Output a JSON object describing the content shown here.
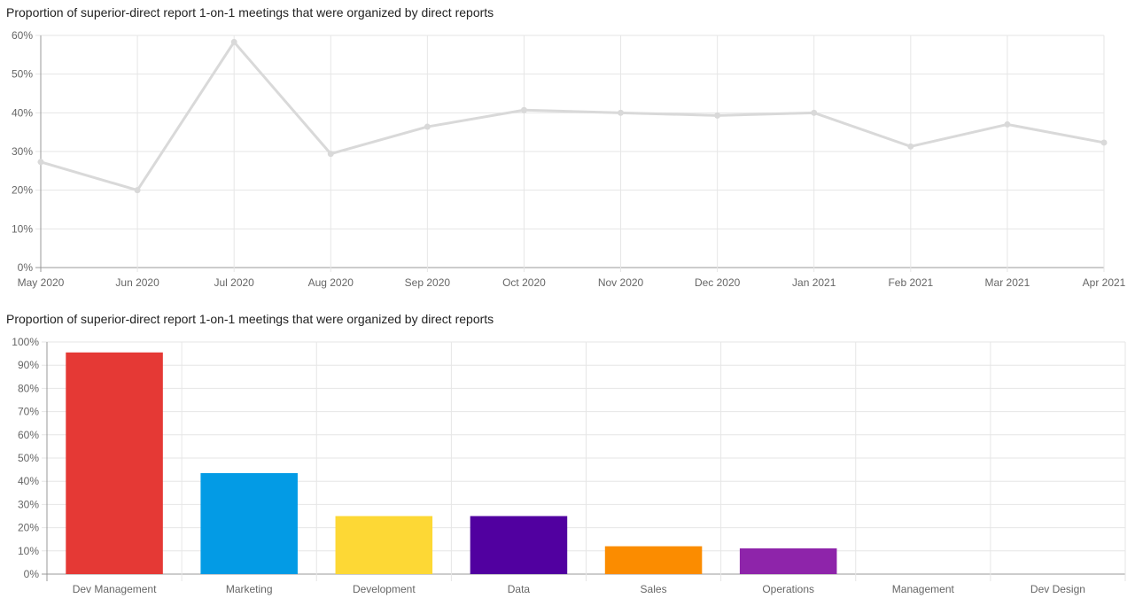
{
  "chart_data": [
    {
      "type": "line",
      "title": "Proportion of superior-direct report 1-on-1 meetings that were organized by direct reports",
      "x": [
        "May 2020",
        "Jun 2020",
        "Jul 2020",
        "Aug 2020",
        "Sep 2020",
        "Oct 2020",
        "Nov 2020",
        "Dec 2020",
        "Jan 2021",
        "Feb 2021",
        "Mar 2021",
        "Apr 2021"
      ],
      "series": [
        {
          "values": [
            27.3,
            20.0,
            58.3,
            29.4,
            36.4,
            40.7,
            40.0,
            39.3,
            40.0,
            31.3,
            37.0,
            32.3
          ],
          "color": "#d9d9d9"
        }
      ],
      "ylim": [
        0,
        60
      ],
      "yticks": [
        "0%",
        "10%",
        "20%",
        "30%",
        "40%",
        "50%",
        "60%"
      ],
      "grid": true,
      "legend": "none"
    },
    {
      "type": "bar",
      "title": "Proportion of superior-direct report 1-on-1 meetings that were organized by direct reports",
      "categories": [
        "Dev Management",
        "Marketing",
        "Development",
        "Data",
        "Sales",
        "Operations",
        "Management",
        "Dev Design"
      ],
      "values": [
        95.5,
        43.5,
        25.0,
        25.0,
        12.0,
        11.1,
        0,
        0
      ],
      "colors": [
        "#e53935",
        "#039be5",
        "#fdd835",
        "#5100a0",
        "#fb8c00",
        "#8e24aa",
        "#cccccc",
        "#cccccc"
      ],
      "ylim": [
        0,
        100
      ],
      "yticks": [
        "0%",
        "10%",
        "20%",
        "30%",
        "40%",
        "50%",
        "60%",
        "70%",
        "80%",
        "90%",
        "100%"
      ],
      "grid": true,
      "legend": "none"
    }
  ]
}
